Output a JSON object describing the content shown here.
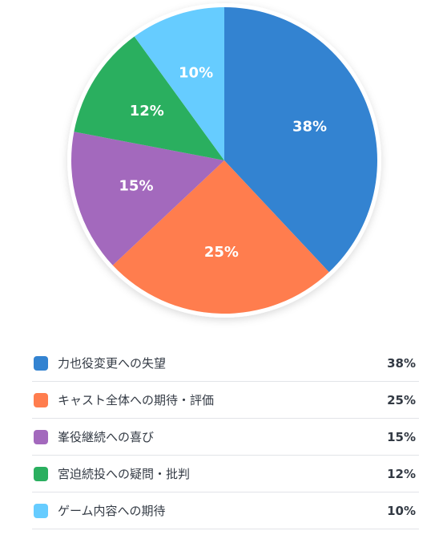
{
  "chart_data": {
    "type": "pie",
    "title": "",
    "slices": [
      {
        "label": "力也役変更への失望",
        "value": 38,
        "display": "38%",
        "color": "#3383d1"
      },
      {
        "label": "キャスト全体への期待・評価",
        "value": 25,
        "display": "25%",
        "color": "#ff7d4e"
      },
      {
        "label": "峯役継続への喜び",
        "value": 15,
        "display": "15%",
        "color": "#a369bd"
      },
      {
        "label": "宮迫続投への疑問・批判",
        "value": 12,
        "display": "12%",
        "color": "#2aaf5f"
      },
      {
        "label": "ゲーム内容への期待",
        "value": 10,
        "display": "10%",
        "color": "#66ccff"
      }
    ],
    "legend_position": "bottom"
  }
}
